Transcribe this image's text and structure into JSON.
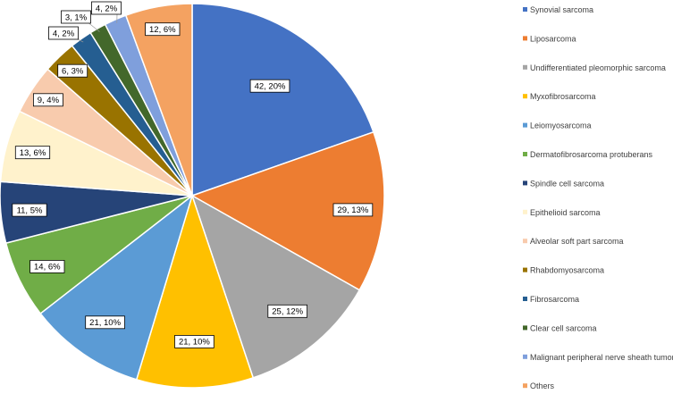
{
  "chart_data": {
    "type": "pie",
    "title": "",
    "legend_position": "right",
    "categories": [
      "Synovial sarcoma",
      "Liposarcoma",
      "Undifferentiated pleomorphic sarcoma",
      "Myxofibrosarcoma",
      "Leiomyosarcoma",
      "Dermatofibrosarcoma protuberans",
      "Spindle cell sarcoma",
      "Epithelioid sarcoma",
      "Alveolar soft part sarcoma",
      "Rhabdomyosarcoma",
      "Fibrosarcoma",
      "Clear cell sarcoma",
      "Malignant peripheral nerve sheath tumor",
      "Others"
    ],
    "values": [
      42,
      29,
      25,
      21,
      21,
      14,
      11,
      13,
      9,
      6,
      4,
      3,
      4,
      12
    ],
    "data_labels": [
      "42, 20%",
      "29, 13%",
      "25, 12%",
      "21, 10%",
      "21, 10%",
      "14, 6%",
      "11, 5%",
      "13, 6%",
      "9, 4%",
      "6, 3%",
      "4, 2%",
      "3, 1%",
      "4, 2%",
      "12, 6%"
    ],
    "colors": [
      "#4472C4",
      "#ED7D31",
      "#A5A5A5",
      "#FFC000",
      "#5B9BD5",
      "#70AD47",
      "#264478",
      "#FFF2CC",
      "#F8CBAD",
      "#997300",
      "#255E91",
      "#43682B",
      "#7F9FDC",
      "#F4A261"
    ]
  }
}
